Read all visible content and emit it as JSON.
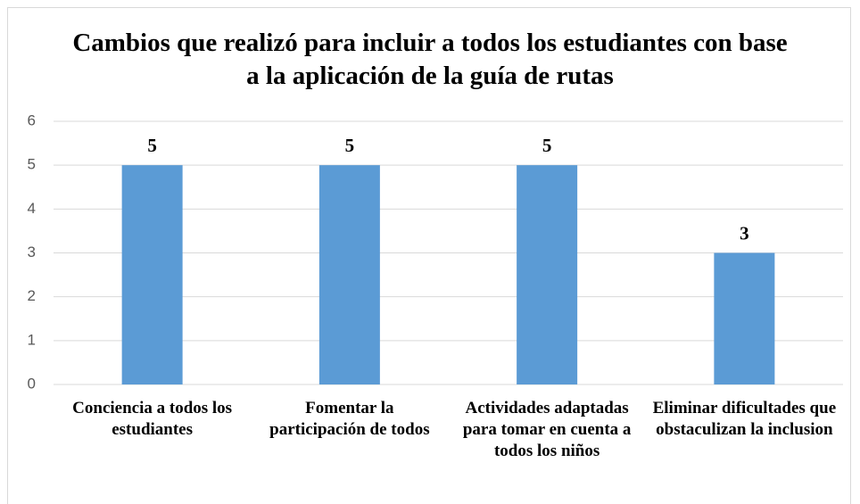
{
  "chart_data": {
    "type": "bar",
    "title": "Cambios que realizó para incluir a todos los estudiantes con base a la aplicación de la guía de rutas",
    "categories": [
      "Conciencia a todos los estudiantes",
      "Fomentar la participación de todos",
      "Actividades adaptadas para tomar en cuenta a todos los niños",
      "Eliminar dificultades que obstaculizan la inclusion"
    ],
    "values": [
      5,
      5,
      5,
      3
    ],
    "color": "#5b9bd5",
    "ylim": [
      0,
      6
    ],
    "yticks": [
      0,
      1,
      2,
      3,
      4,
      5,
      6
    ],
    "grid": true
  }
}
